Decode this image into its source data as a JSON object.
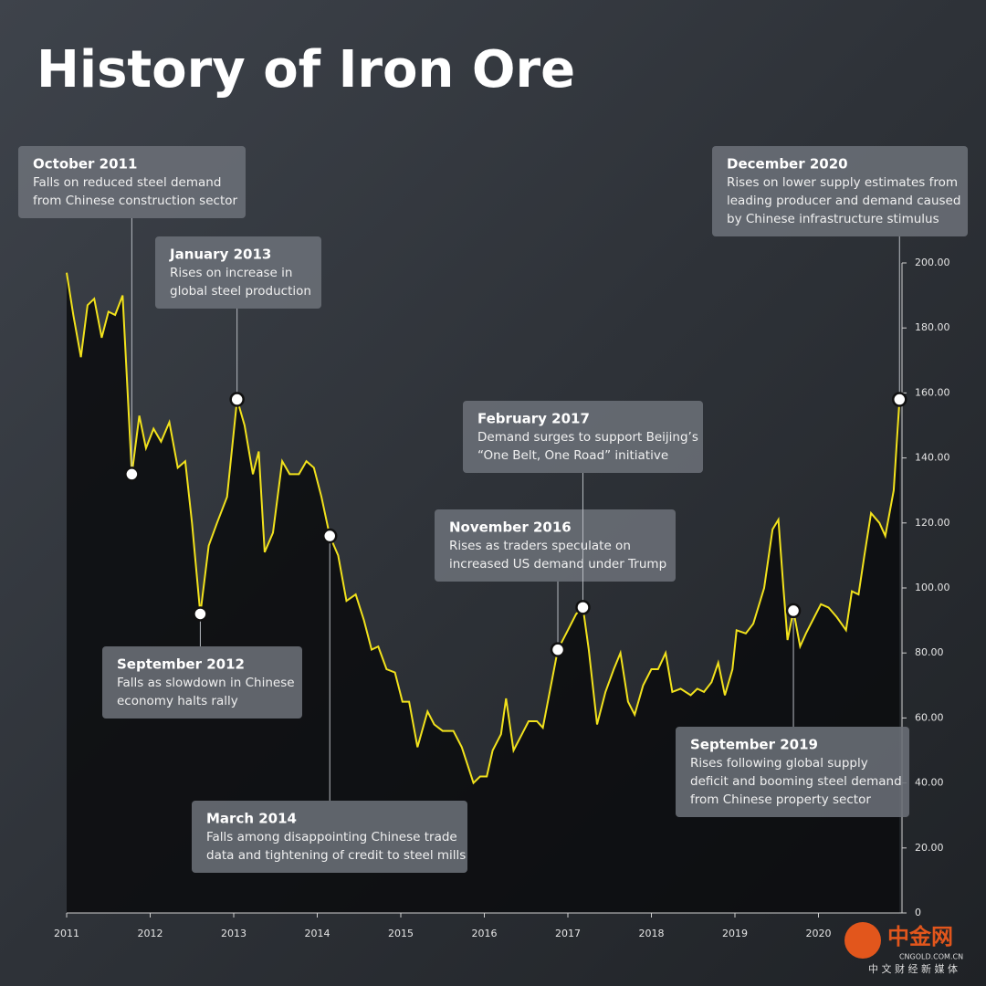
{
  "chart_data": {
    "type": "line",
    "title": "History of Iron Ore",
    "xlim": [
      2011,
      2021
    ],
    "xticks": [
      2011,
      2012,
      2013,
      2014,
      2015,
      2016,
      2017,
      2018,
      2019,
      2020
    ],
    "ylim": [
      0,
      200
    ],
    "yticks": [
      0,
      {
        "value": 20,
        "label": "20.00"
      },
      {
        "value": 40,
        "label": "40.00"
      },
      {
        "value": 60,
        "label": "60.00"
      },
      {
        "value": 80,
        "label": "80.00"
      },
      {
        "value": 100,
        "label": "100.00"
      },
      {
        "value": 120,
        "label": "120.00"
      },
      {
        "value": 140,
        "label": "140.00"
      },
      {
        "value": 160,
        "label": "160.00"
      },
      {
        "value": 180,
        "label": "180.00"
      },
      {
        "value": 200,
        "label": "200.00"
      }
    ],
    "series": [
      {
        "color": "#f2e21c",
        "x": [
          2011.0,
          2011.08,
          2011.17,
          2011.25,
          2011.33,
          2011.42,
          2011.5,
          2011.58,
          2011.67,
          2011.78,
          2011.87,
          2011.95,
          2012.04,
          2012.13,
          2012.23,
          2012.33,
          2012.42,
          2012.5,
          2012.6,
          2012.7,
          2012.8,
          2012.92,
          2013.04,
          2013.13,
          2013.23,
          2013.3,
          2013.37,
          2013.47,
          2013.58,
          2013.67,
          2013.78,
          2013.87,
          2013.96,
          2014.05,
          2014.15,
          2014.25,
          2014.35,
          2014.46,
          2014.56,
          2014.65,
          2014.73,
          2014.83,
          2014.93,
          2015.02,
          2015.1,
          2015.2,
          2015.32,
          2015.4,
          2015.5,
          2015.63,
          2015.73,
          2015.87,
          2015.95,
          2016.03,
          2016.1,
          2016.2,
          2016.26,
          2016.35,
          2016.45,
          2016.53,
          2016.63,
          2016.7,
          2016.88,
          2016.98,
          2017.1,
          2017.18,
          2017.25,
          2017.35,
          2017.45,
          2017.55,
          2017.63,
          2017.72,
          2017.8,
          2017.9,
          2018.0,
          2018.08,
          2018.17,
          2018.25,
          2018.35,
          2018.47,
          2018.55,
          2018.63,
          2018.72,
          2018.8,
          2018.88,
          2018.97,
          2019.02,
          2019.13,
          2019.22,
          2019.35,
          2019.45,
          2019.52,
          2019.58,
          2019.63,
          2019.7,
          2019.78,
          2019.85,
          2019.95,
          2020.03,
          2020.12,
          2020.22,
          2020.33,
          2020.4,
          2020.48,
          2020.55,
          2020.63,
          2020.73,
          2020.8,
          2020.9,
          2020.97
        ],
        "values": [
          197,
          184,
          171,
          187,
          189,
          177,
          185,
          184,
          190,
          135,
          153,
          143,
          149,
          145,
          151,
          137,
          139,
          120,
          92,
          113,
          120,
          128,
          158,
          150,
          135,
          142,
          111,
          117,
          139,
          135,
          135,
          139,
          137,
          128,
          116,
          110,
          96,
          98,
          90,
          81,
          82,
          75,
          74,
          65,
          65,
          51,
          62,
          58,
          56,
          56,
          51,
          40,
          42,
          42,
          50,
          55,
          66,
          50,
          55,
          59,
          59,
          57,
          81,
          86,
          92,
          94,
          81,
          58,
          68,
          75,
          80,
          65,
          61,
          70,
          75,
          75,
          80,
          68,
          69,
          67,
          69,
          68,
          71,
          77,
          67,
          75,
          87,
          86,
          89,
          100,
          118,
          121,
          100,
          84,
          93,
          82,
          86,
          91,
          95,
          94,
          91,
          87,
          99,
          98,
          110,
          123,
          120,
          116,
          130,
          158
        ]
      }
    ],
    "annotations": [
      {
        "x": 2011.78,
        "title": "October 2011",
        "text": [
          "Falls on reduced steel demand",
          "from Chinese construction sector"
        ]
      },
      {
        "x": 2012.6,
        "title": "September 2012",
        "text": [
          "Falls as slowdown in Chinese",
          "economy halts rally"
        ]
      },
      {
        "x": 2013.04,
        "title": "January 2013",
        "text": [
          "Rises on increase in",
          "global steel production"
        ]
      },
      {
        "x": 2014.15,
        "title": "March 2014",
        "text": [
          "Falls among disappointing Chinese trade",
          "data and tightening of credit to steel mills"
        ]
      },
      {
        "x": 2016.88,
        "title": "November 2016",
        "text": [
          "Rises as traders speculate on",
          "increased US demand under Trump"
        ]
      },
      {
        "x": 2017.18,
        "title": "February 2017",
        "text": [
          "Demand surges to support Beijing’s",
          "“One Belt, One Road” initiative"
        ]
      },
      {
        "x": 2019.7,
        "title": "September 2019",
        "text": [
          "Rises following global supply",
          "deficit and booming steel demand",
          "from Chinese property sector"
        ]
      },
      {
        "x": 2020.97,
        "title": "December 2020",
        "text": [
          "Rises on lower supply estimates from",
          "leading producer and demand caused",
          "by Chinese infrastructure stimulus"
        ]
      }
    ],
    "watermark": {
      "logo": "中金网",
      "site": "CNGOLD.COM.CN",
      "tagline": "中 文 财 经 新 媒 体"
    }
  }
}
